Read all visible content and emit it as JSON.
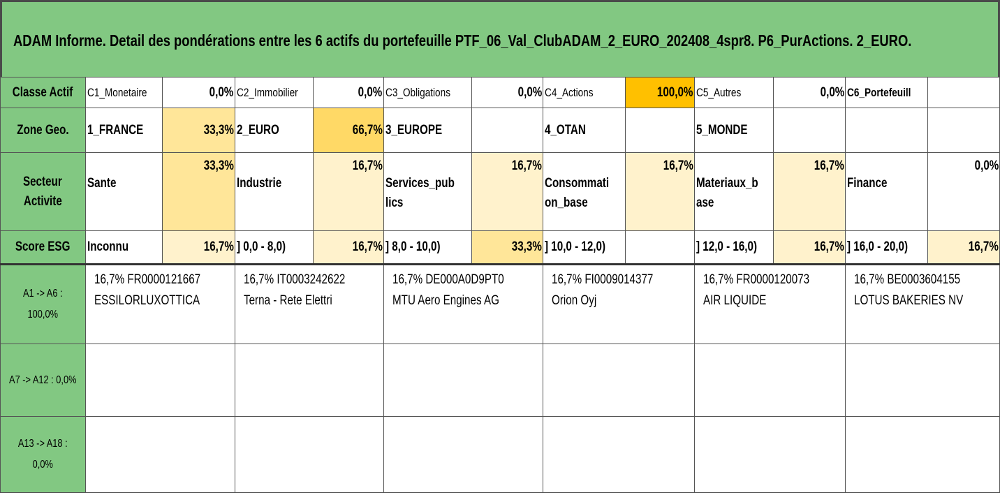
{
  "title": "ADAM Informe. Detail des pondérations entre les 6 actifs du portefeuille PTF_06_Val_ClubADAM_2_EURO_202408_4spr8. P6_PurActions. 2_EURO.",
  "colors": {
    "header_green": "#82c882",
    "light_yellow": "#fff2cc",
    "mid_yellow": "#ffe699",
    "strong_yellow": "#ffd966",
    "orange": "#ffc000"
  },
  "classe": {
    "label": "Classe Actif",
    "cells": [
      {
        "name": "C1_Monetaire",
        "value": "0,0%"
      },
      {
        "name": "C2_Immobilier",
        "value": "0,0%"
      },
      {
        "name": "C3_Obligations",
        "value": "0,0%"
      },
      {
        "name": "C4_Actions",
        "value": "100,0%"
      },
      {
        "name": "C5_Autres",
        "value": "0,0%"
      },
      {
        "name": "C6_Portefeuill",
        "value": ""
      }
    ]
  },
  "zone": {
    "label": "Zone Geo.",
    "cells": [
      {
        "name": "1_FRANCE",
        "value": "33,3%"
      },
      {
        "name": "2_EURO",
        "value": "66,7%"
      },
      {
        "name": "3_EUROPE",
        "value": ""
      },
      {
        "name": "4_OTAN",
        "value": ""
      },
      {
        "name": "5_MONDE",
        "value": ""
      },
      {
        "name": "",
        "value": ""
      }
    ]
  },
  "secteur": {
    "label_line1": "Secteur",
    "label_line2": "Activite",
    "cells": [
      {
        "name_line1": "Sante",
        "name_line2": "",
        "value": "33,3%"
      },
      {
        "name_line1": "Industrie",
        "name_line2": "",
        "value": "16,7%"
      },
      {
        "name_line1": "Services_pub",
        "name_line2": "lics",
        "value": "16,7%"
      },
      {
        "name_line1": "Consommati",
        "name_line2": "on_base",
        "value": "16,7%"
      },
      {
        "name_line1": "Materiaux_b",
        "name_line2": "ase",
        "value": "16,7%"
      },
      {
        "name_line1": "Finance",
        "name_line2": "",
        "value": "0,0%"
      }
    ]
  },
  "esg": {
    "label": "Score ESG",
    "cells": [
      {
        "name": "Inconnu",
        "value": "16,7%"
      },
      {
        "name": "] 0,0 - 8,0)",
        "value": "16,7%"
      },
      {
        "name": "] 8,0 - 10,0)",
        "value": "33,3%"
      },
      {
        "name": "] 10,0 - 12,0)",
        "value": ""
      },
      {
        "name": "] 12,0 - 16,0)",
        "value": "16,7%"
      },
      {
        "name": "] 16,0 - 20,0)",
        "value": "16,7%"
      }
    ]
  },
  "assets_1": {
    "label_line1": "A1 -> A6 :",
    "label_line2": "100,0%",
    "items": [
      {
        "line1": "16,7% FR0000121667",
        "line2": "ESSILORLUXOTTICA"
      },
      {
        "line1": "16,7% IT0003242622",
        "line2": "Terna - Rete Elettri"
      },
      {
        "line1": "16,7% DE000A0D9PT0",
        "line2": "MTU Aero Engines AG"
      },
      {
        "line1": "16,7% FI0009014377",
        "line2": "Orion Oyj"
      },
      {
        "line1": "16,7% FR0000120073",
        "line2": "AIR LIQUIDE"
      },
      {
        "line1": "16,7% BE0003604155",
        "line2": "LOTUS BAKERIES NV"
      }
    ]
  },
  "assets_2": {
    "label": "A7 -> A12 : 0,0%"
  },
  "assets_3": {
    "label_line1": "A13 -> A18 :",
    "label_line2": "0,0%"
  }
}
